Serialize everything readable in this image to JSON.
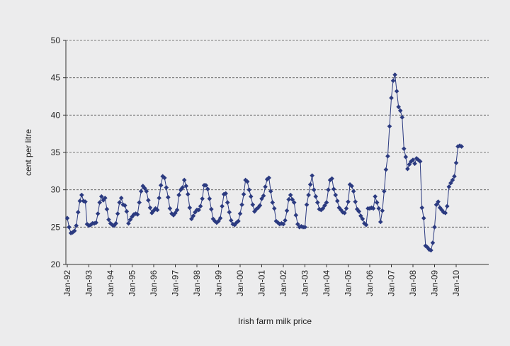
{
  "chart_data": {
    "type": "line",
    "title": "",
    "xlabel": "Irish farm milk price",
    "ylabel": "cent per litre",
    "ylim": [
      20,
      50
    ],
    "yticks": [
      20,
      25,
      30,
      35,
      40,
      45,
      50
    ],
    "grid": "horizontal dashed",
    "legend": "none",
    "colors": {
      "series": "#2b3a80",
      "background": "#ececed"
    },
    "x_tick_labels": [
      "Jan-92",
      "Jan-93",
      "Jan-94",
      "Jan-95",
      "Jan-96",
      "Jan-97",
      "Jan-98",
      "Jan-99",
      "Jan-00",
      "Jan-01",
      "Jan-02",
      "Jan-03",
      "Jan-04",
      "Jan-05",
      "Jan-06",
      "Jan-07",
      "Jan-08",
      "Jan-09",
      "Jan-10"
    ],
    "x_start": "Jan-92",
    "x_frequency": "monthly",
    "series": [
      {
        "values": [
          26.2,
          25.0,
          24.2,
          24.3,
          24.5,
          25.2,
          27.0,
          28.5,
          29.3,
          28.5,
          28.4,
          25.4,
          25.2,
          25.3,
          25.5,
          25.5,
          25.6,
          26.8,
          28.3,
          29.1,
          28.6,
          28.9,
          27.4,
          26.0,
          25.5,
          25.3,
          25.2,
          25.5,
          26.8,
          28.3,
          28.9,
          28.0,
          27.9,
          27.1,
          25.5,
          26.0,
          26.4,
          26.7,
          26.8,
          26.7,
          28.3,
          29.8,
          30.5,
          30.2,
          29.8,
          28.6,
          27.6,
          26.9,
          27.2,
          27.5,
          27.3,
          28.9,
          30.6,
          31.8,
          31.6,
          30.3,
          29.0,
          27.5,
          26.8,
          26.6,
          26.9,
          27.3,
          29.3,
          30.0,
          30.3,
          31.3,
          30.5,
          29.4,
          27.6,
          26.1,
          26.5,
          27.0,
          27.3,
          27.3,
          27.8,
          28.8,
          30.6,
          30.6,
          30.1,
          28.8,
          27.4,
          26.1,
          25.8,
          25.6,
          25.8,
          26.2,
          27.8,
          29.4,
          29.5,
          28.3,
          27.0,
          25.9,
          25.4,
          25.3,
          25.6,
          25.8,
          26.8,
          28.0,
          29.4,
          31.3,
          31.1,
          30.0,
          29.1,
          28.0,
          27.1,
          27.4,
          27.6,
          27.9,
          28.8,
          29.2,
          30.4,
          31.4,
          31.6,
          29.8,
          28.3,
          27.5,
          25.8,
          25.6,
          25.4,
          25.5,
          25.4,
          25.9,
          27.2,
          28.7,
          29.3,
          28.7,
          28.3,
          26.6,
          25.4,
          25.0,
          25.1,
          25.0,
          25.0,
          28.0,
          29.3,
          30.7,
          31.9,
          30.0,
          29.1,
          28.3,
          27.4,
          27.3,
          27.5,
          27.9,
          28.3,
          30.0,
          31.3,
          31.5,
          30.1,
          29.3,
          28.5,
          27.6,
          27.3,
          27.0,
          26.9,
          27.5,
          28.4,
          30.7,
          30.5,
          29.8,
          28.4,
          27.4,
          27.1,
          26.5,
          26.1,
          25.5,
          25.3,
          27.5,
          27.5,
          27.6,
          27.5,
          29.1,
          28.3,
          27.5,
          25.7,
          27.2,
          29.8,
          32.7,
          34.5,
          38.5,
          42.3,
          44.6,
          45.4,
          43.2,
          41.1,
          40.6,
          39.7,
          35.5,
          34.4,
          32.8,
          33.4,
          33.8,
          34.0,
          33.5,
          34.2,
          34.0,
          33.8,
          27.6,
          26.2,
          22.5,
          22.3,
          22.0,
          21.9,
          22.9,
          25.0,
          28.0,
          28.4,
          27.6,
          27.3,
          27.0,
          26.9,
          27.8,
          30.4,
          30.9,
          31.3,
          31.8,
          33.6,
          35.8,
          35.9,
          35.8
        ]
      }
    ]
  }
}
